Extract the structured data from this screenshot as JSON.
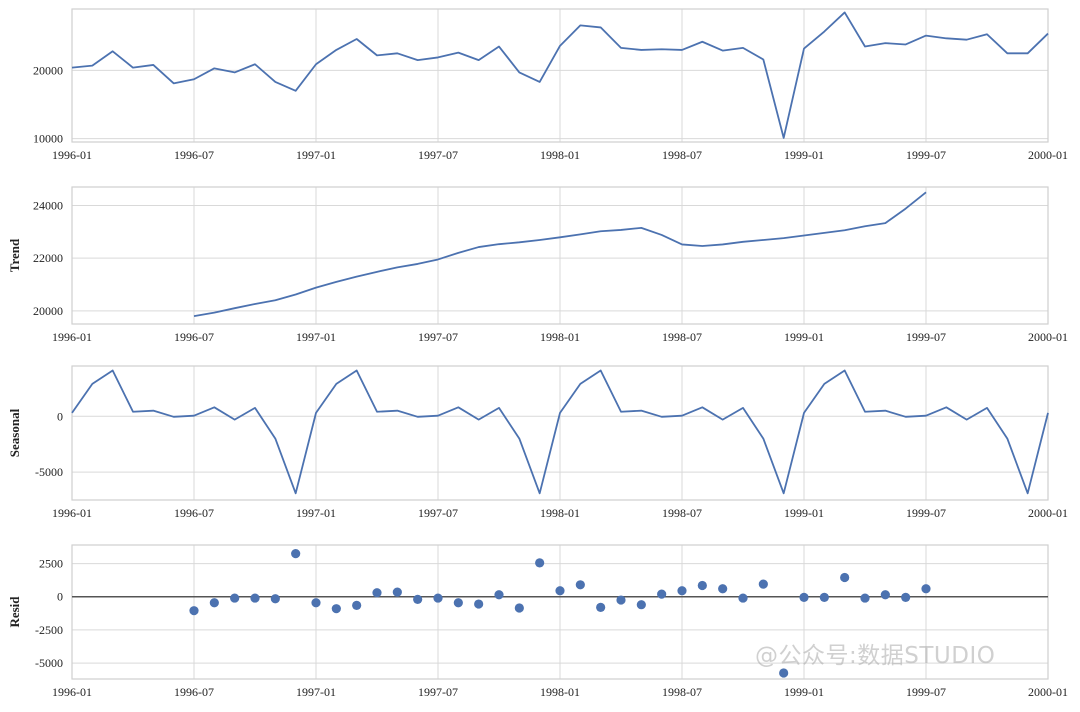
{
  "watermark": "@公众号:数据STUDIO",
  "colors": {
    "series": "#4c72b0",
    "grid": "#d9d9d9",
    "zero_line": "#555555"
  },
  "chart_data": [
    {
      "type": "line",
      "title": "",
      "ylabel": "",
      "xlim": [
        "1996-01",
        "2000-01"
      ],
      "xticks": [
        "1996-01",
        "1996-07",
        "1997-01",
        "1997-07",
        "1998-01",
        "1998-07",
        "1999-01",
        "1999-07",
        "2000-01"
      ],
      "ylim": [
        9500,
        29000
      ],
      "yticks": [
        10000,
        20000
      ],
      "ytick_labels": [
        "10000",
        "20000"
      ],
      "start": "1996-01",
      "values": [
        20400,
        20700,
        22800,
        20400,
        20800,
        18100,
        18700,
        20300,
        19700,
        20900,
        18300,
        17000,
        20900,
        23000,
        24600,
        22200,
        22500,
        21500,
        21900,
        22600,
        21500,
        23500,
        19700,
        18300,
        23600,
        26600,
        26300,
        23300,
        23000,
        23100,
        23000,
        24200,
        22900,
        23300,
        21600,
        10100,
        23200,
        25700,
        28500,
        23500,
        24000,
        23800,
        25100,
        24700,
        24500,
        25300,
        22500,
        22500,
        25400
      ]
    },
    {
      "type": "line",
      "title": "",
      "ylabel": "Trend",
      "xlim": [
        "1996-01",
        "2000-01"
      ],
      "xticks": [
        "1996-01",
        "1996-07",
        "1997-01",
        "1997-07",
        "1998-01",
        "1998-07",
        "1999-01",
        "1999-07",
        "2000-01"
      ],
      "ylim": [
        19500,
        24700
      ],
      "yticks": [
        20000,
        22000,
        24000
      ],
      "ytick_labels": [
        "20000",
        "22000",
        "24000"
      ],
      "start": "1996-07",
      "values": [
        19800,
        19930,
        20100,
        20260,
        20400,
        20620,
        20880,
        21100,
        21300,
        21480,
        21650,
        21780,
        21950,
        22200,
        22420,
        22530,
        22600,
        22690,
        22790,
        22900,
        23020,
        23070,
        23150,
        22880,
        22520,
        22460,
        22520,
        22620,
        22690,
        22760,
        22860,
        22960,
        23060,
        23210,
        23330,
        23880,
        24500
      ]
    },
    {
      "type": "line",
      "title": "",
      "ylabel": "Seasonal",
      "xlim": [
        "1996-01",
        "2000-01"
      ],
      "xticks": [
        "1996-01",
        "1996-07",
        "1997-01",
        "1997-07",
        "1998-01",
        "1998-07",
        "1999-01",
        "1999-07",
        "2000-01"
      ],
      "ylim": [
        -7500,
        4500
      ],
      "yticks": [
        -5000,
        0
      ],
      "ytick_labels": [
        "-5000",
        "0"
      ],
      "start": "1996-01",
      "values": [
        300,
        2900,
        4100,
        400,
        500,
        -50,
        50,
        800,
        -300,
        750,
        -2000,
        -6900,
        300,
        2900,
        4100,
        400,
        500,
        -50,
        50,
        800,
        -300,
        750,
        -2000,
        -6900,
        300,
        2900,
        4100,
        400,
        500,
        -50,
        50,
        800,
        -300,
        750,
        -2000,
        -6900,
        300,
        2900,
        4100,
        400,
        500,
        -50,
        50,
        800,
        -300,
        750,
        -2000,
        -6900,
        300
      ]
    },
    {
      "type": "scatter",
      "title": "",
      "ylabel": "Resid",
      "xlim": [
        "1996-01",
        "2000-01"
      ],
      "xticks": [
        "1996-01",
        "1996-07",
        "1997-01",
        "1997-07",
        "1998-01",
        "1998-07",
        "1999-01",
        "1999-07",
        "2000-01"
      ],
      "ylim": [
        -6200,
        3900
      ],
      "yticks": [
        -5000,
        -2500,
        0,
        2500
      ],
      "ytick_labels": [
        "-5000",
        "-2500",
        "0",
        "2500"
      ],
      "zero_line": true,
      "start": "1996-07",
      "values": [
        -1050,
        -450,
        -100,
        -100,
        -150,
        3250,
        -450,
        -900,
        -650,
        300,
        350,
        -200,
        -100,
        -450,
        -550,
        150,
        -850,
        2550,
        450,
        900,
        -800,
        -250,
        -600,
        200,
        450,
        850,
        600,
        -100,
        950,
        -5750,
        -50,
        -50,
        1450,
        -100,
        150,
        -50,
        600
      ]
    }
  ]
}
